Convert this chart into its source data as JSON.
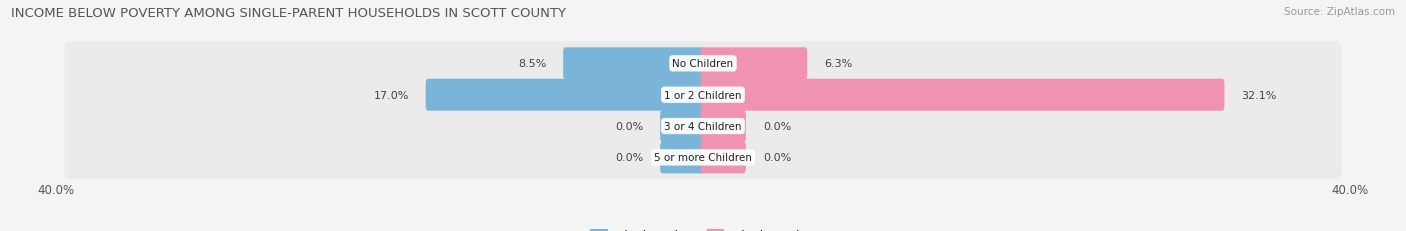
{
  "title": "INCOME BELOW POVERTY AMONG SINGLE-PARENT HOUSEHOLDS IN SCOTT COUNTY",
  "source": "Source: ZipAtlas.com",
  "categories": [
    "No Children",
    "1 or 2 Children",
    "3 or 4 Children",
    "5 or more Children"
  ],
  "single_father": [
    8.5,
    17.0,
    0.0,
    0.0
  ],
  "single_mother": [
    6.3,
    32.1,
    0.0,
    0.0
  ],
  "father_color": "#7ab4d8",
  "mother_color": "#f093b0",
  "bar_bg_color": "#e4e4e4",
  "axis_limit": 40.0,
  "bar_height": 0.72,
  "bar_gap": 0.28,
  "min_stub": 2.5,
  "title_fontsize": 9.5,
  "label_fontsize": 8,
  "category_fontsize": 7.5,
  "axis_label_fontsize": 8.5,
  "legend_fontsize": 8.5,
  "source_fontsize": 7.5,
  "fig_bg": "#f4f4f4",
  "bar_bg": "#e0e0e0",
  "row_bg": "#ebebeb"
}
